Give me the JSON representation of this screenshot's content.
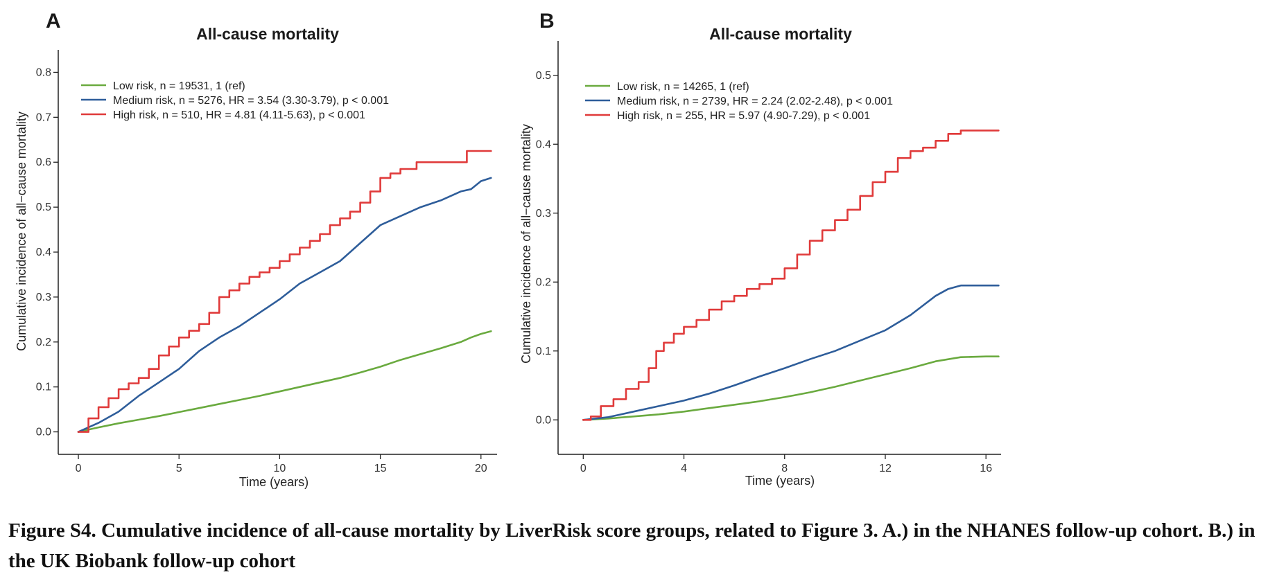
{
  "chart_data": [
    {
      "panel": "A",
      "type": "line",
      "title": "All-cause mortality",
      "xlabel": "Time (years)",
      "ylabel": "Cumulative incidence of all−cause mortality",
      "xlim": [
        -1,
        20.8
      ],
      "ylim": [
        -0.05,
        0.85
      ],
      "xticks": [
        0,
        5,
        10,
        15,
        20
      ],
      "xtick_labels": [
        "0",
        "5",
        "10",
        "15",
        "20"
      ],
      "yticks": [
        0.0,
        0.1,
        0.2,
        0.3,
        0.4,
        0.5,
        0.6,
        0.7,
        0.8
      ],
      "ytick_labels": [
        "0.0",
        "0.1",
        "0.2",
        "0.3",
        "0.4",
        "0.5",
        "0.6",
        "0.7",
        "0.8"
      ],
      "legend_position": "top-left",
      "series": [
        {
          "name": "Low risk, n = 19531, 1 (ref)",
          "color": "#6aaa3f",
          "step": false,
          "x": [
            0,
            1,
            2,
            3,
            4,
            5,
            6,
            7,
            8,
            9,
            10,
            11,
            12,
            13,
            14,
            15,
            16,
            17,
            18,
            19,
            19.5,
            20,
            20.5
          ],
          "y": [
            0,
            0.01,
            0.019,
            0.027,
            0.035,
            0.044,
            0.053,
            0.062,
            0.071,
            0.08,
            0.09,
            0.1,
            0.11,
            0.12,
            0.132,
            0.145,
            0.16,
            0.173,
            0.186,
            0.2,
            0.21,
            0.218,
            0.224
          ]
        },
        {
          "name": "Medium risk, n = 5276, HR = 3.54 (3.30-3.79), p < 0.001",
          "color": "#2e5d9a",
          "step": false,
          "x": [
            0,
            1,
            2,
            3,
            4,
            5,
            6,
            7,
            8,
            9,
            10,
            11,
            12,
            13,
            14,
            15,
            16,
            17,
            18,
            19,
            19.5,
            20,
            20.5
          ],
          "y": [
            0,
            0.02,
            0.045,
            0.08,
            0.11,
            0.14,
            0.18,
            0.21,
            0.235,
            0.265,
            0.295,
            0.33,
            0.355,
            0.38,
            0.42,
            0.46,
            0.48,
            0.5,
            0.515,
            0.535,
            0.54,
            0.558,
            0.565
          ]
        },
        {
          "name": "High risk, n = 510, HR = 4.81 (4.11-5.63), p < 0.001",
          "color": "#e03a3a",
          "step": true,
          "x": [
            0,
            0.5,
            1,
            1.5,
            2,
            2.5,
            3,
            3.5,
            4,
            4.5,
            5,
            5.5,
            6,
            6.5,
            7,
            7.5,
            8,
            8.5,
            9,
            9.5,
            10,
            10.5,
            11,
            11.5,
            12,
            12.5,
            13,
            13.5,
            14,
            14.5,
            15,
            15.5,
            16,
            16.8,
            17.5,
            18.5,
            19.3,
            20.5
          ],
          "y": [
            0,
            0.03,
            0.055,
            0.075,
            0.095,
            0.108,
            0.12,
            0.14,
            0.17,
            0.19,
            0.21,
            0.225,
            0.24,
            0.265,
            0.3,
            0.315,
            0.33,
            0.345,
            0.355,
            0.365,
            0.38,
            0.395,
            0.41,
            0.425,
            0.44,
            0.46,
            0.475,
            0.49,
            0.51,
            0.535,
            0.565,
            0.575,
            0.585,
            0.6,
            0.6,
            0.6,
            0.625,
            0.625
          ]
        }
      ]
    },
    {
      "panel": "B",
      "type": "line",
      "title": "All-cause mortality",
      "xlabel": "Time (years)",
      "ylabel": "Cumulative incidence of all−cause mortality",
      "xlim": [
        -1,
        16.6
      ],
      "ylim": [
        -0.05,
        0.55
      ],
      "xticks": [
        0,
        4,
        8,
        12,
        16
      ],
      "xtick_labels": [
        "0",
        "4",
        "8",
        "12",
        "16"
      ],
      "yticks": [
        0.0,
        0.1,
        0.2,
        0.3,
        0.4,
        0.5
      ],
      "ytick_labels": [
        "0.0",
        "0.1",
        "0.2",
        "0.3",
        "0.4",
        "0.5"
      ],
      "legend_position": "top-left",
      "series": [
        {
          "name": "Low risk, n = 14265, 1 (ref)",
          "color": "#6aaa3f",
          "step": false,
          "x": [
            0,
            1,
            2,
            3,
            4,
            5,
            6,
            7,
            8,
            9,
            10,
            11,
            12,
            13,
            14,
            15,
            16,
            16.5
          ],
          "y": [
            0,
            0.002,
            0.005,
            0.008,
            0.012,
            0.017,
            0.022,
            0.027,
            0.033,
            0.04,
            0.048,
            0.057,
            0.066,
            0.075,
            0.085,
            0.091,
            0.092,
            0.092
          ]
        },
        {
          "name": "Medium risk, n = 2739, HR = 2.24 (2.02-2.48), p < 0.001",
          "color": "#2e5d9a",
          "step": false,
          "x": [
            0,
            1,
            2,
            3,
            4,
            5,
            6,
            7,
            8,
            9,
            10,
            11,
            12,
            13,
            14,
            14.5,
            15,
            16,
            16.5
          ],
          "y": [
            0,
            0.004,
            0.012,
            0.02,
            0.028,
            0.038,
            0.05,
            0.063,
            0.075,
            0.088,
            0.1,
            0.115,
            0.13,
            0.152,
            0.18,
            0.19,
            0.195,
            0.195,
            0.195
          ]
        },
        {
          "name": "High risk, n = 255, HR = 5.97 (4.90-7.29), p < 0.001",
          "color": "#e03a3a",
          "step": true,
          "x": [
            0,
            0.3,
            0.7,
            1.2,
            1.7,
            2.2,
            2.6,
            2.9,
            3.2,
            3.6,
            4,
            4.5,
            5,
            5.5,
            6,
            6.5,
            7,
            7.5,
            8,
            8.5,
            9,
            9.5,
            10,
            10.5,
            11,
            11.5,
            12,
            12.5,
            13,
            13.5,
            14,
            14.5,
            15,
            16.5
          ],
          "y": [
            0,
            0.005,
            0.02,
            0.03,
            0.045,
            0.055,
            0.075,
            0.1,
            0.112,
            0.125,
            0.135,
            0.145,
            0.16,
            0.172,
            0.18,
            0.19,
            0.197,
            0.205,
            0.22,
            0.24,
            0.26,
            0.275,
            0.29,
            0.305,
            0.325,
            0.345,
            0.36,
            0.38,
            0.39,
            0.395,
            0.405,
            0.415,
            0.42,
            0.42
          ]
        }
      ]
    }
  ],
  "caption": "Figure S4. Cumulative incidence of all-cause mortality by LiverRisk score groups, related to Figure 3. A.) in the NHANES follow-up cohort. B.) in the UK Biobank follow-up cohort"
}
